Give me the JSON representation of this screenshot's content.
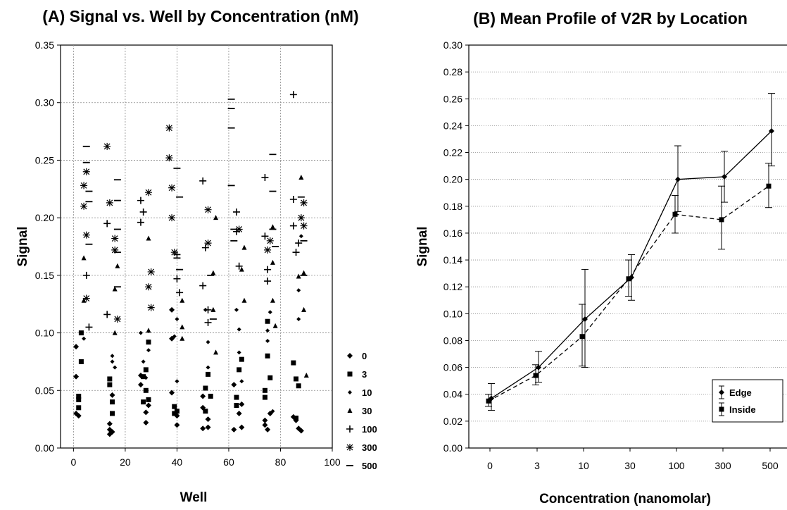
{
  "chart_data": [
    {
      "type": "scatter",
      "title": "(A) Signal vs. Well by Concentration (nM)",
      "xlabel": "Well",
      "ylabel": "Signal",
      "xlim": [
        -5,
        100
      ],
      "ylim": [
        0,
        0.35
      ],
      "xticks": [
        "0",
        "20",
        "40",
        "60",
        "80",
        "100"
      ],
      "yticks": [
        "0.00",
        "0.05",
        "0.10",
        "0.15",
        "0.20",
        "0.25",
        "0.30",
        "0.35"
      ],
      "grid": true,
      "legend_position": "right",
      "series": [
        {
          "name": "0",
          "marker": "diamond",
          "points": [
            [
              1,
              0.088
            ],
            [
              1,
              0.062
            ],
            [
              1,
              0.03
            ],
            [
              2,
              0.028
            ],
            [
              14,
              0.012
            ],
            [
              14,
              0.016
            ],
            [
              14,
              0.021
            ],
            [
              15,
              0.014
            ],
            [
              15,
              0.046
            ],
            [
              26,
              0.055
            ],
            [
              26,
              0.063
            ],
            [
              28,
              0.031
            ],
            [
              28,
              0.022
            ],
            [
              29,
              0.037
            ],
            [
              38,
              0.048
            ],
            [
              38,
              0.095
            ],
            [
              38,
              0.12
            ],
            [
              40,
              0.02
            ],
            [
              40,
              0.028
            ],
            [
              50,
              0.017
            ],
            [
              50,
              0.035
            ],
            [
              50,
              0.045
            ],
            [
              52,
              0.018
            ],
            [
              52,
              0.025
            ],
            [
              62,
              0.016
            ],
            [
              62,
              0.055
            ],
            [
              64,
              0.03
            ],
            [
              65,
              0.018
            ],
            [
              65,
              0.038
            ],
            [
              74,
              0.02
            ],
            [
              74,
              0.024
            ],
            [
              75,
              0.016
            ],
            [
              76,
              0.03
            ],
            [
              85,
              0.027
            ],
            [
              86,
              0.024
            ],
            [
              87,
              0.017
            ],
            [
              88,
              0.015
            ]
          ]
        },
        {
          "name": "3",
          "marker": "square",
          "points": [
            [
              2,
              0.035
            ],
            [
              2,
              0.042
            ],
            [
              2,
              0.045
            ],
            [
              3,
              0.075
            ],
            [
              3,
              0.1
            ],
            [
              14,
              0.055
            ],
            [
              14,
              0.06
            ],
            [
              15,
              0.03
            ],
            [
              15,
              0.04
            ],
            [
              27,
              0.04
            ],
            [
              27,
              0.062
            ],
            [
              28,
              0.05
            ],
            [
              28,
              0.068
            ],
            [
              29,
              0.042
            ],
            [
              29,
              0.092
            ],
            [
              39,
              0.036
            ],
            [
              39,
              0.03
            ],
            [
              40,
              0.032
            ],
            [
              51,
              0.032
            ],
            [
              51,
              0.052
            ],
            [
              52,
              0.064
            ],
            [
              53,
              0.045
            ],
            [
              63,
              0.037
            ],
            [
              63,
              0.044
            ],
            [
              64,
              0.068
            ],
            [
              65,
              0.077
            ],
            [
              74,
              0.044
            ],
            [
              74,
              0.05
            ],
            [
              75,
              0.08
            ],
            [
              75,
              0.11
            ],
            [
              76,
              0.061
            ],
            [
              85,
              0.074
            ],
            [
              86,
              0.026
            ],
            [
              86,
              0.06
            ],
            [
              87,
              0.054
            ]
          ]
        },
        {
          "name": "10",
          "marker": "diamond-sm",
          "points": [
            [
              3,
              0.1
            ],
            [
              4,
              0.095
            ],
            [
              15,
              0.075
            ],
            [
              15,
              0.08
            ],
            [
              16,
              0.07
            ],
            [
              26,
              0.1
            ],
            [
              27,
              0.075
            ],
            [
              28,
              0.061
            ],
            [
              29,
              0.085
            ],
            [
              39,
              0.097
            ],
            [
              40,
              0.112
            ],
            [
              40,
              0.058
            ],
            [
              51,
              0.12
            ],
            [
              52,
              0.092
            ],
            [
              52,
              0.07
            ],
            [
              63,
              0.12
            ],
            [
              64,
              0.103
            ],
            [
              64,
              0.083
            ],
            [
              65,
              0.058
            ],
            [
              75,
              0.093
            ],
            [
              75,
              0.102
            ],
            [
              76,
              0.118
            ],
            [
              77,
              0.032
            ],
            [
              87,
              0.112
            ],
            [
              87,
              0.137
            ],
            [
              88,
              0.184
            ],
            [
              88,
              0.015
            ]
          ]
        },
        {
          "name": "30",
          "marker": "triangle",
          "points": [
            [
              4,
              0.165
            ],
            [
              4,
              0.128
            ],
            [
              16,
              0.1
            ],
            [
              16,
              0.138
            ],
            [
              17,
              0.158
            ],
            [
              29,
              0.182
            ],
            [
              29,
              0.102
            ],
            [
              42,
              0.128
            ],
            [
              42,
              0.105
            ],
            [
              42,
              0.095
            ],
            [
              54,
              0.152
            ],
            [
              54,
              0.12
            ],
            [
              55,
              0.083
            ],
            [
              55,
              0.2
            ],
            [
              65,
              0.155
            ],
            [
              66,
              0.174
            ],
            [
              66,
              0.128
            ],
            [
              77,
              0.192
            ],
            [
              77,
              0.128
            ],
            [
              77,
              0.161
            ],
            [
              78,
              0.106
            ],
            [
              87,
              0.149
            ],
            [
              88,
              0.235
            ],
            [
              89,
              0.12
            ],
            [
              89,
              0.152
            ],
            [
              90,
              0.063
            ]
          ]
        },
        {
          "name": "100",
          "marker": "plus",
          "points": [
            [
              5,
              0.15
            ],
            [
              6,
              0.105
            ],
            [
              13,
              0.195
            ],
            [
              13,
              0.116
            ],
            [
              26,
              0.215
            ],
            [
              26,
              0.196
            ],
            [
              27,
              0.205
            ],
            [
              40,
              0.168
            ],
            [
              40,
              0.147
            ],
            [
              41,
              0.135
            ],
            [
              50,
              0.232
            ],
            [
              50,
              0.141
            ],
            [
              51,
              0.174
            ],
            [
              52,
              0.109
            ],
            [
              52,
              0.12
            ],
            [
              63,
              0.205
            ],
            [
              63,
              0.188
            ],
            [
              64,
              0.158
            ],
            [
              74,
              0.235
            ],
            [
              74,
              0.184
            ],
            [
              75,
              0.145
            ],
            [
              75,
              0.155
            ],
            [
              85,
              0.193
            ],
            [
              85,
              0.216
            ],
            [
              86,
              0.17
            ],
            [
              87,
              0.178
            ],
            [
              85,
              0.307
            ]
          ]
        },
        {
          "name": "300",
          "marker": "asterisk",
          "points": [
            [
              4,
              0.21
            ],
            [
              4,
              0.228
            ],
            [
              5,
              0.24
            ],
            [
              5,
              0.185
            ],
            [
              5,
              0.13
            ],
            [
              13,
              0.262
            ],
            [
              14,
              0.213
            ],
            [
              16,
              0.172
            ],
            [
              16,
              0.182
            ],
            [
              17,
              0.112
            ],
            [
              29,
              0.222
            ],
            [
              29,
              0.14
            ],
            [
              30,
              0.153
            ],
            [
              30,
              0.122
            ],
            [
              37,
              0.278
            ],
            [
              37,
              0.252
            ],
            [
              38,
              0.226
            ],
            [
              38,
              0.2
            ],
            [
              39,
              0.17
            ],
            [
              52,
              0.207
            ],
            [
              52,
              0.178
            ],
            [
              64,
              0.19
            ],
            [
              75,
              0.172
            ],
            [
              76,
              0.18
            ],
            [
              88,
              0.2
            ],
            [
              89,
              0.193
            ],
            [
              89,
              0.213
            ]
          ]
        },
        {
          "name": "500",
          "marker": "dash",
          "points": [
            [
              5,
              0.262
            ],
            [
              5,
              0.248
            ],
            [
              6,
              0.223
            ],
            [
              6,
              0.214
            ],
            [
              6,
              0.177
            ],
            [
              17,
              0.233
            ],
            [
              17,
              0.215
            ],
            [
              17,
              0.19
            ],
            [
              17,
              0.17
            ],
            [
              17,
              0.14
            ],
            [
              40,
              0.243
            ],
            [
              41,
              0.218
            ],
            [
              40,
              0.165
            ],
            [
              41,
              0.155
            ],
            [
              53,
              0.15
            ],
            [
              54,
              0.112
            ],
            [
              61,
              0.303
            ],
            [
              61,
              0.295
            ],
            [
              61,
              0.278
            ],
            [
              61,
              0.228
            ],
            [
              62,
              0.19
            ],
            [
              62,
              0.18
            ],
            [
              77,
              0.255
            ],
            [
              77,
              0.223
            ],
            [
              77,
              0.19
            ],
            [
              78,
              0.175
            ],
            [
              88,
              0.218
            ],
            [
              89,
              0.18
            ],
            [
              89,
              0.15
            ]
          ]
        }
      ]
    },
    {
      "type": "line",
      "title": "(B) Mean Profile of V2R by Location",
      "xlabel": "Concentration (nanomolar)",
      "ylabel": "Signal",
      "categories": [
        "0",
        "3",
        "10",
        "30",
        "100",
        "300",
        "500"
      ],
      "ylim": [
        0,
        0.3
      ],
      "yticks": [
        "0.00",
        "0.02",
        "0.04",
        "0.06",
        "0.08",
        "0.10",
        "0.12",
        "0.14",
        "0.16",
        "0.18",
        "0.20",
        "0.22",
        "0.24",
        "0.26",
        "0.28",
        "0.30"
      ],
      "grid": true,
      "legend_position": "bottom-right",
      "series": [
        {
          "name": "Edge",
          "line_style": "solid",
          "marker": "diamond",
          "values": [
            0.037,
            0.06,
            0.096,
            0.127,
            0.2,
            0.202,
            0.236
          ],
          "error_low": [
            0.028,
            0.049,
            0.06,
            0.11,
            0.176,
            0.183,
            0.21
          ],
          "error_high": [
            0.048,
            0.072,
            0.133,
            0.144,
            0.225,
            0.221,
            0.264
          ]
        },
        {
          "name": "Inside",
          "line_style": "dashed",
          "marker": "square",
          "values": [
            0.035,
            0.054,
            0.083,
            0.126,
            0.174,
            0.17,
            0.195
          ],
          "error_low": [
            0.031,
            0.047,
            0.061,
            0.113,
            0.16,
            0.148,
            0.179
          ],
          "error_high": [
            0.04,
            0.062,
            0.107,
            0.14,
            0.188,
            0.195,
            0.212
          ]
        }
      ]
    }
  ]
}
